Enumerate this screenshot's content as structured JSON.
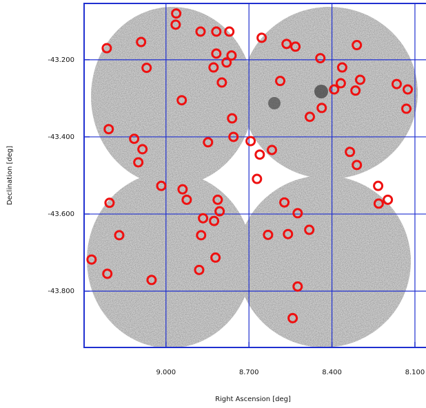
{
  "chart_data": {
    "type": "scatter",
    "xlabel": "Right Ascension [deg]",
    "ylabel": "Declination [deg]",
    "xlim": [
      9.296,
      8.06
    ],
    "ylim": [
      -43.946,
      -43.054
    ],
    "xticks": [
      {
        "value": 9.0,
        "label": "9.000"
      },
      {
        "value": 8.7,
        "label": "8.700"
      },
      {
        "value": 8.4,
        "label": "8.400"
      },
      {
        "value": 8.1,
        "label": "8.100"
      }
    ],
    "yticks": [
      {
        "value": -43.2,
        "label": "-43.200"
      },
      {
        "value": -43.4,
        "label": "-43.400"
      },
      {
        "value": -43.6,
        "label": "-43.600"
      },
      {
        "value": -43.8,
        "label": "-43.800"
      }
    ],
    "grid": true,
    "grid_color": "#1f2fd0",
    "color": "#ee1111",
    "x": [
      8.963,
      8.965,
      8.875,
      8.818,
      8.771,
      8.654,
      9.214,
      9.09,
      8.564,
      8.532,
      8.31,
      8.818,
      8.763,
      8.781,
      8.442,
      9.07,
      8.828,
      8.363,
      8.798,
      8.587,
      8.368,
      8.298,
      8.392,
      8.315,
      8.166,
      8.126,
      8.943,
      8.437,
      8.48,
      8.131,
      8.761,
      9.207,
      9.115,
      8.756,
      8.848,
      8.694,
      9.085,
      8.617,
      8.661,
      8.335,
      9.1,
      8.31,
      8.671,
      9.017,
      8.94,
      8.233,
      8.925,
      8.813,
      9.204,
      8.572,
      8.231,
      8.198,
      8.806,
      8.524,
      8.866,
      8.826,
      9.169,
      8.873,
      8.631,
      8.559,
      8.482,
      8.821,
      9.269,
      8.88,
      9.212,
      9.052,
      8.524,
      8.542
    ],
    "values": [
      -43.08,
      -43.109,
      -43.127,
      -43.127,
      -43.127,
      -43.143,
      -43.17,
      -43.154,
      -43.159,
      -43.166,
      -43.162,
      -43.184,
      -43.189,
      -43.207,
      -43.196,
      -43.221,
      -43.22,
      -43.22,
      -43.259,
      -43.255,
      -43.261,
      -43.252,
      -43.277,
      -43.28,
      -43.263,
      -43.277,
      -43.305,
      -43.325,
      -43.348,
      -43.327,
      -43.352,
      -43.38,
      -43.405,
      -43.4,
      -43.414,
      -43.411,
      -43.432,
      -43.434,
      -43.446,
      -43.439,
      -43.466,
      -43.473,
      -43.509,
      -43.527,
      -43.536,
      -43.527,
      -43.563,
      -43.563,
      -43.571,
      -43.57,
      -43.573,
      -43.563,
      -43.593,
      -43.598,
      -43.611,
      -43.618,
      -43.655,
      -43.655,
      -43.654,
      -43.652,
      -43.641,
      -43.713,
      -43.718,
      -43.745,
      -43.755,
      -43.771,
      -43.788,
      -43.87
    ]
  }
}
